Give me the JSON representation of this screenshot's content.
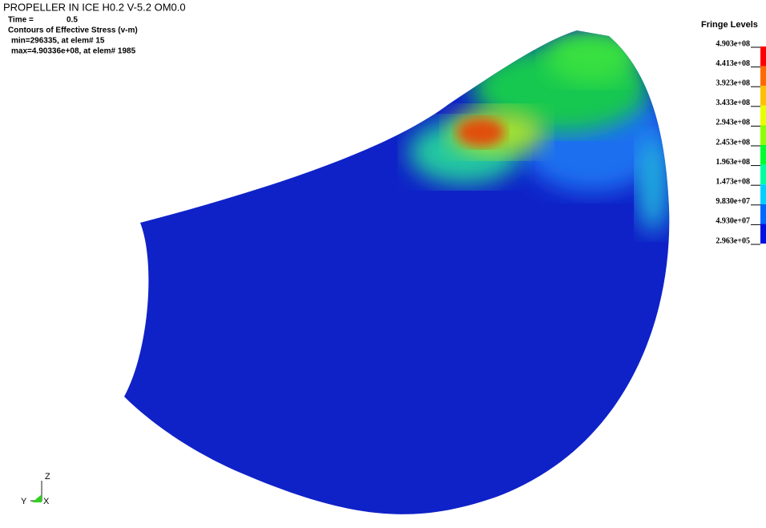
{
  "header": {
    "title": "PROPELLER IN ICE H0.2 V-5.2 OM0.0",
    "time_label": "Time =",
    "time_value": "0.5",
    "contour": "Contours of Effective Stress (v-m)",
    "min": "min=296335, at elem# 15",
    "max": "max=4.90336e+08, at elem# 1985"
  },
  "legend": {
    "title": "Fringe Levels",
    "levels": [
      "4.903e+08",
      "4.413e+08",
      "3.923e+08",
      "3.433e+08",
      "2.943e+08",
      "2.453e+08",
      "1.963e+08",
      "1.473e+08",
      "9.830e+07",
      "4.930e+07",
      "2.963e+05"
    ],
    "colors": [
      "#ff0000",
      "#ff6a00",
      "#ffc000",
      "#e8ff00",
      "#8cff00",
      "#00ff30",
      "#00ffa0",
      "#00d0ff",
      "#0068ff",
      "#0010e0"
    ]
  },
  "axes": {
    "z": "Z",
    "y": "Y",
    "x": "X"
  }
}
